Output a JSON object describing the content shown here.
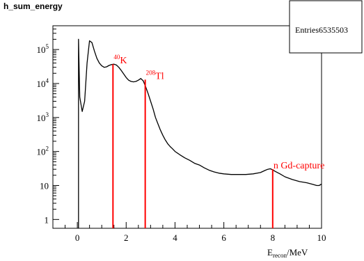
{
  "chart_data": {
    "type": "line",
    "title": "h_sum_energy",
    "stats_box": {
      "label": "Entries",
      "value": "6535503"
    },
    "xlabel": {
      "base": "E",
      "sub": "recon",
      "unit": "/MeV"
    },
    "ylabel": "",
    "x_axis": {
      "lim": [
        -1,
        10
      ],
      "ticks": [
        0,
        2,
        4,
        6,
        8,
        10
      ],
      "tick_labels": [
        "0",
        "2",
        "4",
        "6",
        "8",
        "10"
      ]
    },
    "y_axis": {
      "scale": "log",
      "lim": [
        0.55,
        500000
      ],
      "ticks": [
        1,
        10,
        100,
        1000,
        10000,
        100000
      ],
      "tick_labels": [
        {
          "base": "1",
          "exp": ""
        },
        {
          "base": "10",
          "exp": ""
        },
        {
          "base": "10",
          "exp": "2"
        },
        {
          "base": "10",
          "exp": "3"
        },
        {
          "base": "10",
          "exp": "4"
        },
        {
          "base": "10",
          "exp": "5"
        }
      ]
    },
    "series": [
      {
        "style": "histogram",
        "color": "#000000",
        "points": [
          [
            0.05,
            200000
          ],
          [
            0.1,
            4000
          ],
          [
            0.2,
            1500
          ],
          [
            0.3,
            3000
          ],
          [
            0.4,
            40000
          ],
          [
            0.5,
            180000
          ],
          [
            0.6,
            160000
          ],
          [
            0.7,
            90000
          ],
          [
            0.8,
            55000
          ],
          [
            0.9,
            40000
          ],
          [
            1.0,
            33000
          ],
          [
            1.1,
            30000
          ],
          [
            1.2,
            31000
          ],
          [
            1.3,
            34000
          ],
          [
            1.4,
            36000
          ],
          [
            1.5,
            37000
          ],
          [
            1.6,
            35000
          ],
          [
            1.7,
            30000
          ],
          [
            1.8,
            24000
          ],
          [
            1.9,
            19000
          ],
          [
            2.0,
            15000
          ],
          [
            2.1,
            12500
          ],
          [
            2.2,
            11500
          ],
          [
            2.3,
            11200
          ],
          [
            2.4,
            11500
          ],
          [
            2.5,
            12500
          ],
          [
            2.6,
            14000
          ],
          [
            2.7,
            12000
          ],
          [
            2.8,
            8000
          ],
          [
            2.9,
            5000
          ],
          [
            3.0,
            3000
          ],
          [
            3.1,
            1800
          ],
          [
            3.2,
            1000
          ],
          [
            3.3,
            650
          ],
          [
            3.4,
            430
          ],
          [
            3.5,
            300
          ],
          [
            3.6,
            220
          ],
          [
            3.7,
            170
          ],
          [
            3.8,
            140
          ],
          [
            3.9,
            120
          ],
          [
            4.0,
            100
          ],
          [
            4.2,
            80
          ],
          [
            4.4,
            65
          ],
          [
            4.6,
            55
          ],
          [
            4.8,
            45
          ],
          [
            5.0,
            40
          ],
          [
            5.2,
            33
          ],
          [
            5.4,
            28
          ],
          [
            5.6,
            25
          ],
          [
            5.8,
            23
          ],
          [
            6.0,
            22
          ],
          [
            6.3,
            21
          ],
          [
            6.6,
            21
          ],
          [
            6.9,
            21
          ],
          [
            7.2,
            22
          ],
          [
            7.5,
            24
          ],
          [
            7.7,
            28
          ],
          [
            7.8,
            30
          ],
          [
            7.9,
            31
          ],
          [
            8.0,
            29
          ],
          [
            8.1,
            26
          ],
          [
            8.3,
            22
          ],
          [
            8.5,
            18
          ],
          [
            8.8,
            15
          ],
          [
            9.1,
            13
          ],
          [
            9.4,
            12
          ],
          [
            9.6,
            11
          ],
          [
            9.8,
            10
          ],
          [
            9.9,
            10
          ],
          [
            10.0,
            11
          ]
        ]
      }
    ],
    "markers": [
      {
        "x": 1.46,
        "y": 37000,
        "color": "#ff0000",
        "label": {
          "sup": "40",
          "text": "K"
        }
      },
      {
        "x": 2.78,
        "y": 13000,
        "color": "#ff0000",
        "label": {
          "sup": "208",
          "text": "Tl"
        }
      },
      {
        "x": 8.0,
        "y": 30,
        "color": "#ff0000",
        "label": {
          "sup": "",
          "text": "n Gd-capture"
        }
      }
    ]
  }
}
